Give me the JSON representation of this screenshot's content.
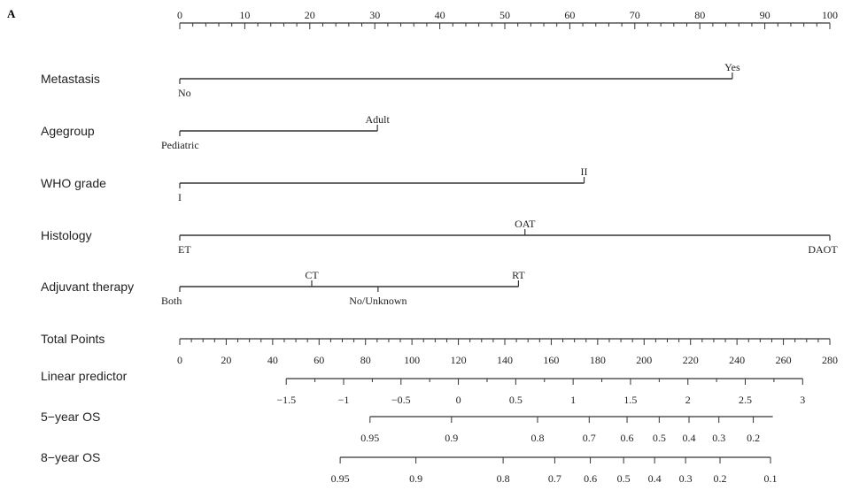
{
  "panel_label": "A",
  "chart_data": {
    "type": "nomogram",
    "points": {
      "range": [
        0,
        100
      ],
      "major_ticks": [
        0,
        10,
        20,
        30,
        40,
        50,
        60,
        70,
        80,
        90,
        100
      ],
      "tick_labels": [
        "0",
        "10",
        "20",
        "30",
        "40",
        "50",
        "60",
        "70",
        "80",
        "90",
        "100"
      ]
    },
    "variables": [
      {
        "key": "metastasis",
        "name": "Metastasis",
        "levels": [
          {
            "label": "No",
            "points": 0,
            "side": "below"
          },
          {
            "label": "Yes",
            "points": 85,
            "side": "above"
          }
        ]
      },
      {
        "key": "agegroup",
        "name": "Agegroup",
        "levels": [
          {
            "label": "Pediatric",
            "points": 0,
            "side": "below"
          },
          {
            "label": "Adult",
            "points": 30.4,
            "side": "above"
          }
        ]
      },
      {
        "key": "who_grade",
        "name": "WHO grade",
        "levels": [
          {
            "label": "I",
            "points": 0,
            "side": "below"
          },
          {
            "label": "II",
            "points": 62.2,
            "side": "above"
          }
        ]
      },
      {
        "key": "histology",
        "name": "Histology",
        "levels": [
          {
            "label": "ET",
            "points": 0,
            "side": "below"
          },
          {
            "label": "OAT",
            "points": 53.1,
            "side": "above"
          },
          {
            "label": "DAOT",
            "points": 100,
            "side": "below"
          }
        ]
      },
      {
        "key": "adjuvant_therapy",
        "name": "Adjuvant therapy",
        "levels": [
          {
            "label": "Both",
            "points": 0,
            "side": "below"
          },
          {
            "label": "CT",
            "points": 20.3,
            "side": "above"
          },
          {
            "label": "No/Unknown",
            "points": 30.5,
            "side": "below"
          },
          {
            "label": "RT",
            "points": 52.1,
            "side": "above"
          }
        ]
      }
    ],
    "total_points": {
      "name": "Total Points",
      "range": [
        0,
        280
      ],
      "major_ticks": [
        0,
        20,
        40,
        60,
        80,
        100,
        120,
        140,
        160,
        180,
        200,
        220,
        240,
        260,
        280
      ],
      "tick_labels": [
        "0",
        "20",
        "40",
        "60",
        "80",
        "100",
        "120",
        "140",
        "160",
        "180",
        "200",
        "220",
        "240",
        "260",
        "280"
      ]
    },
    "linear_predictor": {
      "name": "Linear predictor",
      "line_range": [
        -1.5,
        3
      ],
      "ticks": [
        -1.5,
        -1,
        -0.5,
        0,
        0.5,
        1,
        1.5,
        2,
        2.5,
        3
      ],
      "tick_labels": [
        "−1.5",
        "−1",
        "−0.5",
        "0",
        "0.5",
        "1",
        "1.5",
        "2",
        "2.5",
        "3"
      ]
    },
    "survival_axes": [
      {
        "key": "os5",
        "name": "5−year OS",
        "line_range_lp": [
          -0.77,
          2.74
        ],
        "ticks": [
          {
            "label": "0.95",
            "lp": -0.77
          },
          {
            "label": "0.9",
            "lp": -0.06
          },
          {
            "label": "0.8",
            "lp": 0.69
          },
          {
            "label": "0.7",
            "lp": 1.14
          },
          {
            "label": "0.6",
            "lp": 1.47
          },
          {
            "label": "0.5",
            "lp": 1.75
          },
          {
            "label": "0.4",
            "lp": 2.01
          },
          {
            "label": "0.3",
            "lp": 2.27
          },
          {
            "label": "0.2",
            "lp": 2.57
          }
        ]
      },
      {
        "key": "os8",
        "name": "8−year OS",
        "line_range_lp": [
          -1.03,
          2.72
        ],
        "ticks": [
          {
            "label": "0.95",
            "lp": -1.03
          },
          {
            "label": "0.9",
            "lp": -0.37
          },
          {
            "label": "0.8",
            "lp": 0.39
          },
          {
            "label": "0.7",
            "lp": 0.84
          },
          {
            "label": "0.6",
            "lp": 1.15
          },
          {
            "label": "0.5",
            "lp": 1.44
          },
          {
            "label": "0.4",
            "lp": 1.71
          },
          {
            "label": "0.3",
            "lp": 1.98
          },
          {
            "label": "0.2",
            "lp": 2.28
          },
          {
            "label": "0.1",
            "lp": 2.72
          }
        ]
      }
    ]
  }
}
